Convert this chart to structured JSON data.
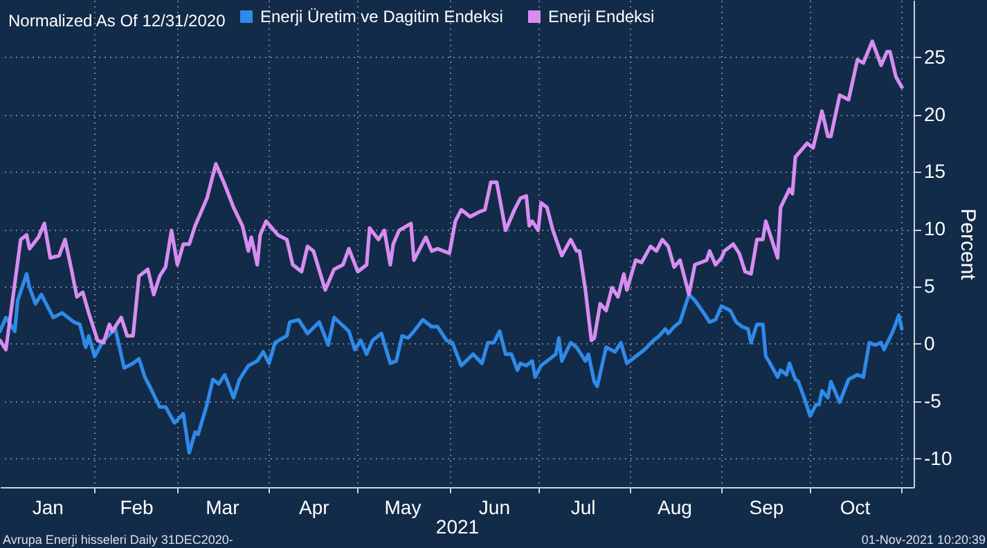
{
  "chart_data": {
    "type": "line",
    "legend_title": "Normalized As Of 12/31/2020",
    "xlabel": "2021",
    "ylabel": "Percent",
    "annotations": [
      "Avrupa Enerji hisseleri  Daily 31DEC2020-",
      "01-Nov-2021 10:20:39"
    ],
    "xlim": [
      "2020-12-31",
      "2021-11-05"
    ],
    "ylim": [
      -12.5,
      30
    ],
    "xticks": [
      {
        "value": "2021-01-16",
        "label": "Jan"
      },
      {
        "value": "2021-02-01",
        "label": null
      },
      {
        "value": "2021-02-15",
        "label": "Feb"
      },
      {
        "value": "2021-03-01",
        "label": null
      },
      {
        "value": "2021-03-16",
        "label": "Mar"
      },
      {
        "value": "2021-04-01",
        "label": null
      },
      {
        "value": "2021-04-16",
        "label": "Apr"
      },
      {
        "value": "2021-05-01",
        "label": null
      },
      {
        "value": "2021-05-16",
        "label": "May"
      },
      {
        "value": "2021-06-01",
        "label": null
      },
      {
        "value": "2021-06-16",
        "label": "Jun"
      },
      {
        "value": "2021-07-01",
        "label": null
      },
      {
        "value": "2021-07-16",
        "label": "Jul"
      },
      {
        "value": "2021-08-01",
        "label": null
      },
      {
        "value": "2021-08-16",
        "label": "Aug"
      },
      {
        "value": "2021-09-01",
        "label": null
      },
      {
        "value": "2021-09-16",
        "label": "Sep"
      },
      {
        "value": "2021-10-01",
        "label": null
      },
      {
        "value": "2021-10-16",
        "label": "Oct"
      },
      {
        "value": "2021-11-01",
        "label": null
      }
    ],
    "yticks": [
      -10,
      -5,
      0,
      5,
      10,
      15,
      20,
      25
    ],
    "grid": true,
    "legend": "top left",
    "series": [
      {
        "name": "Enerji Üretim ve Dagitim Endeksi",
        "color": "#2f8ae8",
        "x": [
          "2020-12-31",
          "2021-01-02",
          "2021-01-05",
          "2021-01-06",
          "2021-01-09",
          "2021-01-10",
          "2021-01-12",
          "2021-01-14",
          "2021-01-18",
          "2021-01-21",
          "2021-01-25",
          "2021-01-27",
          "2021-01-29",
          "2021-01-30",
          "2021-02-01",
          "2021-02-04",
          "2021-02-08",
          "2021-02-11",
          "2021-02-14",
          "2021-02-16",
          "2021-02-18",
          "2021-02-20",
          "2021-02-23",
          "2021-02-25",
          "2021-02-28",
          "2021-03-03",
          "2021-03-05",
          "2021-03-07",
          "2021-03-08",
          "2021-03-11",
          "2021-03-13",
          "2021-03-15",
          "2021-03-17",
          "2021-03-20",
          "2021-03-22",
          "2021-03-25",
          "2021-03-28",
          "2021-03-30",
          "2021-04-01",
          "2021-04-03",
          "2021-04-07",
          "2021-04-08",
          "2021-04-11",
          "2021-04-14",
          "2021-04-18",
          "2021-04-21",
          "2021-04-23",
          "2021-04-28",
          "2021-04-30",
          "2021-05-02",
          "2021-05-04",
          "2021-05-06",
          "2021-05-09",
          "2021-05-12",
          "2021-05-14",
          "2021-05-16",
          "2021-05-18",
          "2021-05-20",
          "2021-05-23",
          "2021-05-26",
          "2021-05-28",
          "2021-05-31",
          "2021-06-02",
          "2021-06-05",
          "2021-06-09",
          "2021-06-12",
          "2021-06-14",
          "2021-06-16",
          "2021-06-18",
          "2021-06-20",
          "2021-06-22",
          "2021-06-24",
          "2021-06-25",
          "2021-06-27",
          "2021-06-29",
          "2021-06-30",
          "2021-07-02",
          "2021-07-05",
          "2021-07-07",
          "2021-07-08",
          "2021-07-09",
          "2021-07-12",
          "2021-07-14",
          "2021-07-17",
          "2021-07-18",
          "2021-07-20",
          "2021-07-21",
          "2021-07-24",
          "2021-07-27",
          "2021-07-29",
          "2021-07-31",
          "2021-08-04",
          "2021-08-06",
          "2021-08-09",
          "2021-08-11",
          "2021-08-13",
          "2021-08-14",
          "2021-08-16",
          "2021-08-18",
          "2021-08-21",
          "2021-08-23",
          "2021-08-26",
          "2021-08-28",
          "2021-08-30",
          "2021-09-01",
          "2021-09-04",
          "2021-09-06",
          "2021-09-08",
          "2021-09-10",
          "2021-09-11",
          "2021-09-13",
          "2021-09-15",
          "2021-09-16",
          "2021-09-17",
          "2021-09-20",
          "2021-09-21",
          "2021-09-23",
          "2021-09-24",
          "2021-09-26",
          "2021-09-27",
          "2021-09-29",
          "2021-10-01",
          "2021-10-03",
          "2021-10-04",
          "2021-10-05",
          "2021-10-07",
          "2021-10-08",
          "2021-10-11",
          "2021-10-14",
          "2021-10-17",
          "2021-10-19",
          "2021-10-21",
          "2021-10-23",
          "2021-10-25",
          "2021-10-26",
          "2021-10-29",
          "2021-10-31",
          "2021-11-01"
        ],
        "values": [
          1.1,
          2.3,
          1.1,
          3.8,
          6.1,
          4.9,
          3.5,
          4.3,
          2.3,
          2.7,
          1.9,
          1.7,
          -0.3,
          0.7,
          -1.1,
          0.3,
          1.3,
          -2.1,
          -1.7,
          -1.3,
          -2.9,
          -3.9,
          -5.5,
          -5.5,
          -6.9,
          -6.1,
          -9.5,
          -7.7,
          -7.9,
          -5.3,
          -3.1,
          -3.5,
          -2.7,
          -4.7,
          -3.1,
          -1.9,
          -1.5,
          -0.7,
          -1.7,
          0.1,
          0.7,
          1.9,
          2.1,
          0.9,
          1.9,
          -0.1,
          2.3,
          1.1,
          -0.5,
          0.3,
          -0.9,
          0.3,
          0.9,
          -1.7,
          -1.5,
          0.7,
          0.5,
          1.1,
          2.1,
          1.5,
          1.5,
          0.3,
          0.1,
          -1.9,
          -0.9,
          -1.7,
          0.1,
          0.1,
          1.1,
          -0.9,
          -0.9,
          -2.3,
          -1.7,
          -1.9,
          -1.5,
          -2.9,
          -1.9,
          -1.3,
          -0.9,
          0.5,
          -1.5,
          0.1,
          -0.3,
          -1.5,
          -0.9,
          -3.3,
          -3.7,
          -0.3,
          -0.7,
          0.1,
          -1.7,
          -0.9,
          -0.5,
          0.3,
          0.7,
          1.3,
          0.9,
          1.5,
          1.9,
          4.3,
          3.8,
          2.7,
          1.9,
          2.1,
          3.3,
          2.9,
          1.9,
          1.5,
          1.3,
          0.1,
          1.7,
          1.7,
          -1.1,
          -1.5,
          -2.9,
          -2.3,
          -2.7,
          -1.7,
          -3.1,
          -3.3,
          -4.7,
          -6.3,
          -5.3,
          -5.3,
          -4.1,
          -4.7,
          -3.3,
          -5.1,
          -3.1,
          -2.7,
          -2.9,
          0.1,
          -0.1,
          0.1,
          -0.5,
          1.1,
          2.5,
          1.3
        ]
      },
      {
        "name": "Enerji Endeksi",
        "color": "#d78df0",
        "x": [
          "2020-12-31",
          "2021-01-02",
          "2021-01-07",
          "2021-01-09",
          "2021-01-10",
          "2021-01-13",
          "2021-01-15",
          "2021-01-17",
          "2021-01-20",
          "2021-01-22",
          "2021-01-24",
          "2021-01-26",
          "2021-01-28",
          "2021-01-30",
          "2021-02-02",
          "2021-02-04",
          "2021-02-06",
          "2021-02-07",
          "2021-02-10",
          "2021-02-12",
          "2021-02-14",
          "2021-02-16",
          "2021-02-19",
          "2021-02-21",
          "2021-02-23",
          "2021-02-25",
          "2021-02-27",
          "2021-03-01",
          "2021-03-03",
          "2021-03-05",
          "2021-03-07",
          "2021-03-09",
          "2021-03-11",
          "2021-03-14",
          "2021-03-17",
          "2021-03-20",
          "2021-03-23",
          "2021-03-25",
          "2021-03-26",
          "2021-03-28",
          "2021-03-29",
          "2021-03-31",
          "2021-04-04",
          "2021-04-07",
          "2021-04-09",
          "2021-04-12",
          "2021-04-14",
          "2021-04-16",
          "2021-04-20",
          "2021-04-23",
          "2021-04-26",
          "2021-04-28",
          "2021-05-01",
          "2021-05-04",
          "2021-05-05",
          "2021-05-08",
          "2021-05-10",
          "2021-05-12",
          "2021-05-13",
          "2021-05-15",
          "2021-05-19",
          "2021-05-20",
          "2021-05-24",
          "2021-05-26",
          "2021-05-28",
          "2021-06-01",
          "2021-06-03",
          "2021-06-05",
          "2021-06-08",
          "2021-06-11",
          "2021-06-13",
          "2021-06-15",
          "2021-06-17",
          "2021-06-20",
          "2021-06-23",
          "2021-06-25",
          "2021-06-27",
          "2021-06-28",
          "2021-06-29",
          "2021-07-01",
          "2021-07-02",
          "2021-07-04",
          "2021-07-06",
          "2021-07-09",
          "2021-07-12",
          "2021-07-14",
          "2021-07-15",
          "2021-07-17",
          "2021-07-19",
          "2021-07-20",
          "2021-07-22",
          "2021-07-24",
          "2021-07-26",
          "2021-07-28",
          "2021-07-30",
          "2021-07-31",
          "2021-08-03",
          "2021-08-05",
          "2021-08-08",
          "2021-08-10",
          "2021-08-12",
          "2021-08-14",
          "2021-08-16",
          "2021-08-18",
          "2021-08-21",
          "2021-08-23",
          "2021-08-27",
          "2021-08-28",
          "2021-08-30",
          "2021-09-01",
          "2021-09-02",
          "2021-09-05",
          "2021-09-07",
          "2021-09-09",
          "2021-09-11",
          "2021-09-13",
          "2021-09-15",
          "2021-09-16",
          "2021-09-17",
          "2021-09-20",
          "2021-09-21",
          "2021-09-24",
          "2021-09-25",
          "2021-09-26",
          "2021-09-30",
          "2021-10-02",
          "2021-10-05",
          "2021-10-07",
          "2021-10-08",
          "2021-10-11",
          "2021-10-14",
          "2021-10-17",
          "2021-10-19",
          "2021-10-22",
          "2021-10-25",
          "2021-10-27",
          "2021-10-28",
          "2021-10-30",
          "2021-11-01"
        ],
        "values": [
          0.3,
          -0.5,
          9.1,
          9.5,
          8.3,
          9.3,
          10.5,
          7.5,
          7.7,
          9.1,
          6.7,
          4.1,
          4.5,
          2.7,
          0.3,
          0.1,
          1.7,
          1.1,
          2.3,
          0.7,
          0.7,
          5.9,
          6.5,
          4.3,
          5.9,
          6.7,
          9.9,
          6.9,
          8.7,
          8.7,
          10.3,
          11.5,
          12.7,
          15.7,
          13.9,
          11.9,
          10.3,
          8.1,
          9.3,
          6.9,
          9.5,
          10.7,
          9.5,
          9.1,
          6.9,
          6.3,
          8.5,
          8.1,
          4.7,
          6.5,
          6.9,
          8.3,
          6.3,
          6.9,
          10.1,
          9.1,
          9.9,
          6.9,
          8.7,
          9.9,
          10.5,
          7.3,
          9.3,
          8.1,
          8.3,
          7.9,
          10.7,
          11.7,
          11.1,
          11.5,
          11.7,
          14.1,
          14.1,
          9.9,
          11.7,
          12.7,
          12.9,
          10.3,
          10.7,
          9.9,
          12.3,
          11.9,
          9.9,
          7.7,
          9.1,
          8.1,
          8.1,
          4.7,
          0.3,
          0.5,
          3.5,
          2.9,
          4.9,
          4.1,
          6.1,
          4.7,
          7.3,
          7.1,
          8.5,
          8.1,
          9.1,
          8.5,
          6.7,
          7.3,
          4.3,
          6.9,
          7.3,
          8.1,
          6.9,
          7.5,
          8.1,
          8.7,
          7.9,
          6.3,
          6.1,
          9.1,
          9.1,
          10.7,
          9.9,
          7.5,
          11.9,
          13.5,
          13.1,
          16.3,
          17.5,
          17.1,
          20.3,
          18.1,
          18.1,
          21.7,
          21.3,
          24.8,
          24.5,
          26.4,
          24.3,
          25.5,
          25.5,
          23.3,
          22.4
        ]
      }
    ]
  }
}
